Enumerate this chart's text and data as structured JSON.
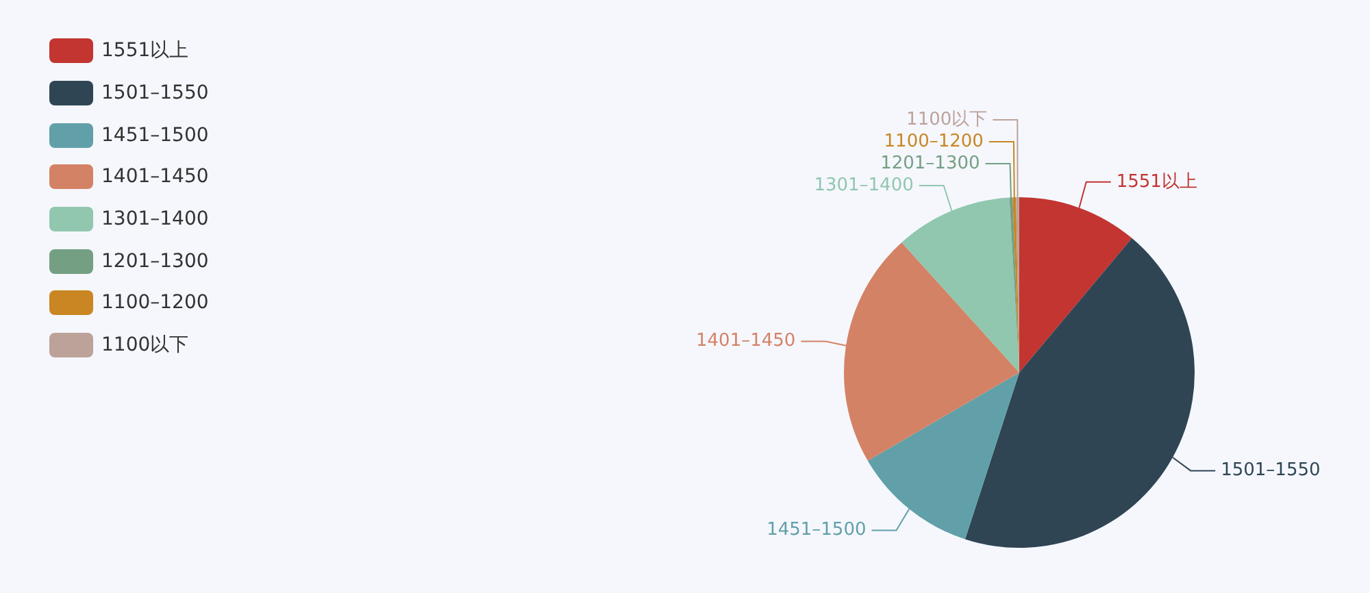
{
  "chart_data": {
    "type": "pie",
    "legend": "top left",
    "data_labels": false,
    "categories": [
      "1551以上",
      "1501–1550",
      "1451–1500",
      "1401–1450",
      "1301–1400",
      "1201–1300",
      "1100–1200",
      "1100以下"
    ],
    "values": [
      11.1,
      43.9,
      11.6,
      21.7,
      10.8,
      0.3,
      0.3,
      0.3
    ],
    "colors": [
      "#c23531",
      "#2f4554",
      "#61a0a8",
      "#d48265",
      "#91c7ae",
      "#749f83",
      "#ca8622",
      "#bda29a"
    ]
  }
}
